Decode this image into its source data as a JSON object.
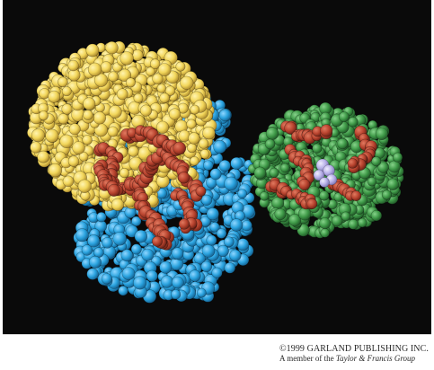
{
  "image": {
    "subject": "space-filling molecular model",
    "background_color": "#0a0a0a",
    "colors": {
      "yellow": "#f2d65a",
      "yellow_shade": "#c9a93a",
      "blue": "#2aa3df",
      "blue_shade": "#1a78b2",
      "red": "#b8432e",
      "red_shade": "#7e2a1c",
      "green": "#3f9a48",
      "green_shade": "#276a31",
      "lavender": "#b7b0e8"
    }
  },
  "credit": {
    "line1": "©1999 GARLAND PUBLISHING INC.",
    "line2_prefix": "A member of the ",
    "line2_publisher": "Taylor & Francis Group"
  }
}
